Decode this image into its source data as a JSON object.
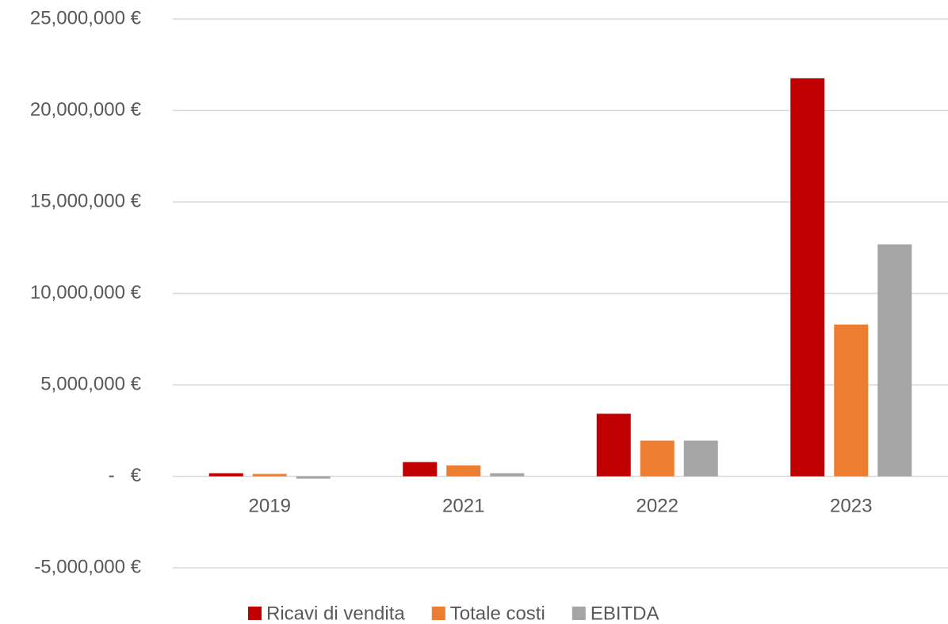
{
  "chart_data": {
    "type": "bar",
    "categories": [
      "2019",
      "2021",
      "2022",
      "2023"
    ],
    "series": [
      {
        "name": "Ricavi di vendita",
        "color": "#c00000",
        "values": [
          170000,
          780000,
          3420000,
          21760000
        ]
      },
      {
        "name": "Totale costi",
        "color": "#ed7d31",
        "values": [
          130000,
          600000,
          1950000,
          8300000
        ]
      },
      {
        "name": "EBITDA",
        "color": "#a5a5a5",
        "values": [
          -130000,
          170000,
          1950000,
          12680000
        ]
      }
    ],
    "ylim": [
      -5000000,
      25000000
    ],
    "yticks": [
      {
        "value": -5000000,
        "label": "-5,000,000 €"
      },
      {
        "value": 0,
        "label": "-   €"
      },
      {
        "value": 5000000,
        "label": "5,000,000 €"
      },
      {
        "value": 10000000,
        "label": "10,000,000 €"
      },
      {
        "value": 15000000,
        "label": "15,000,000 €"
      },
      {
        "value": 20000000,
        "label": "20,000,000 €"
      },
      {
        "value": 25000000,
        "label": "25,000,000 €"
      }
    ],
    "grid": true,
    "legend": "bottom"
  }
}
